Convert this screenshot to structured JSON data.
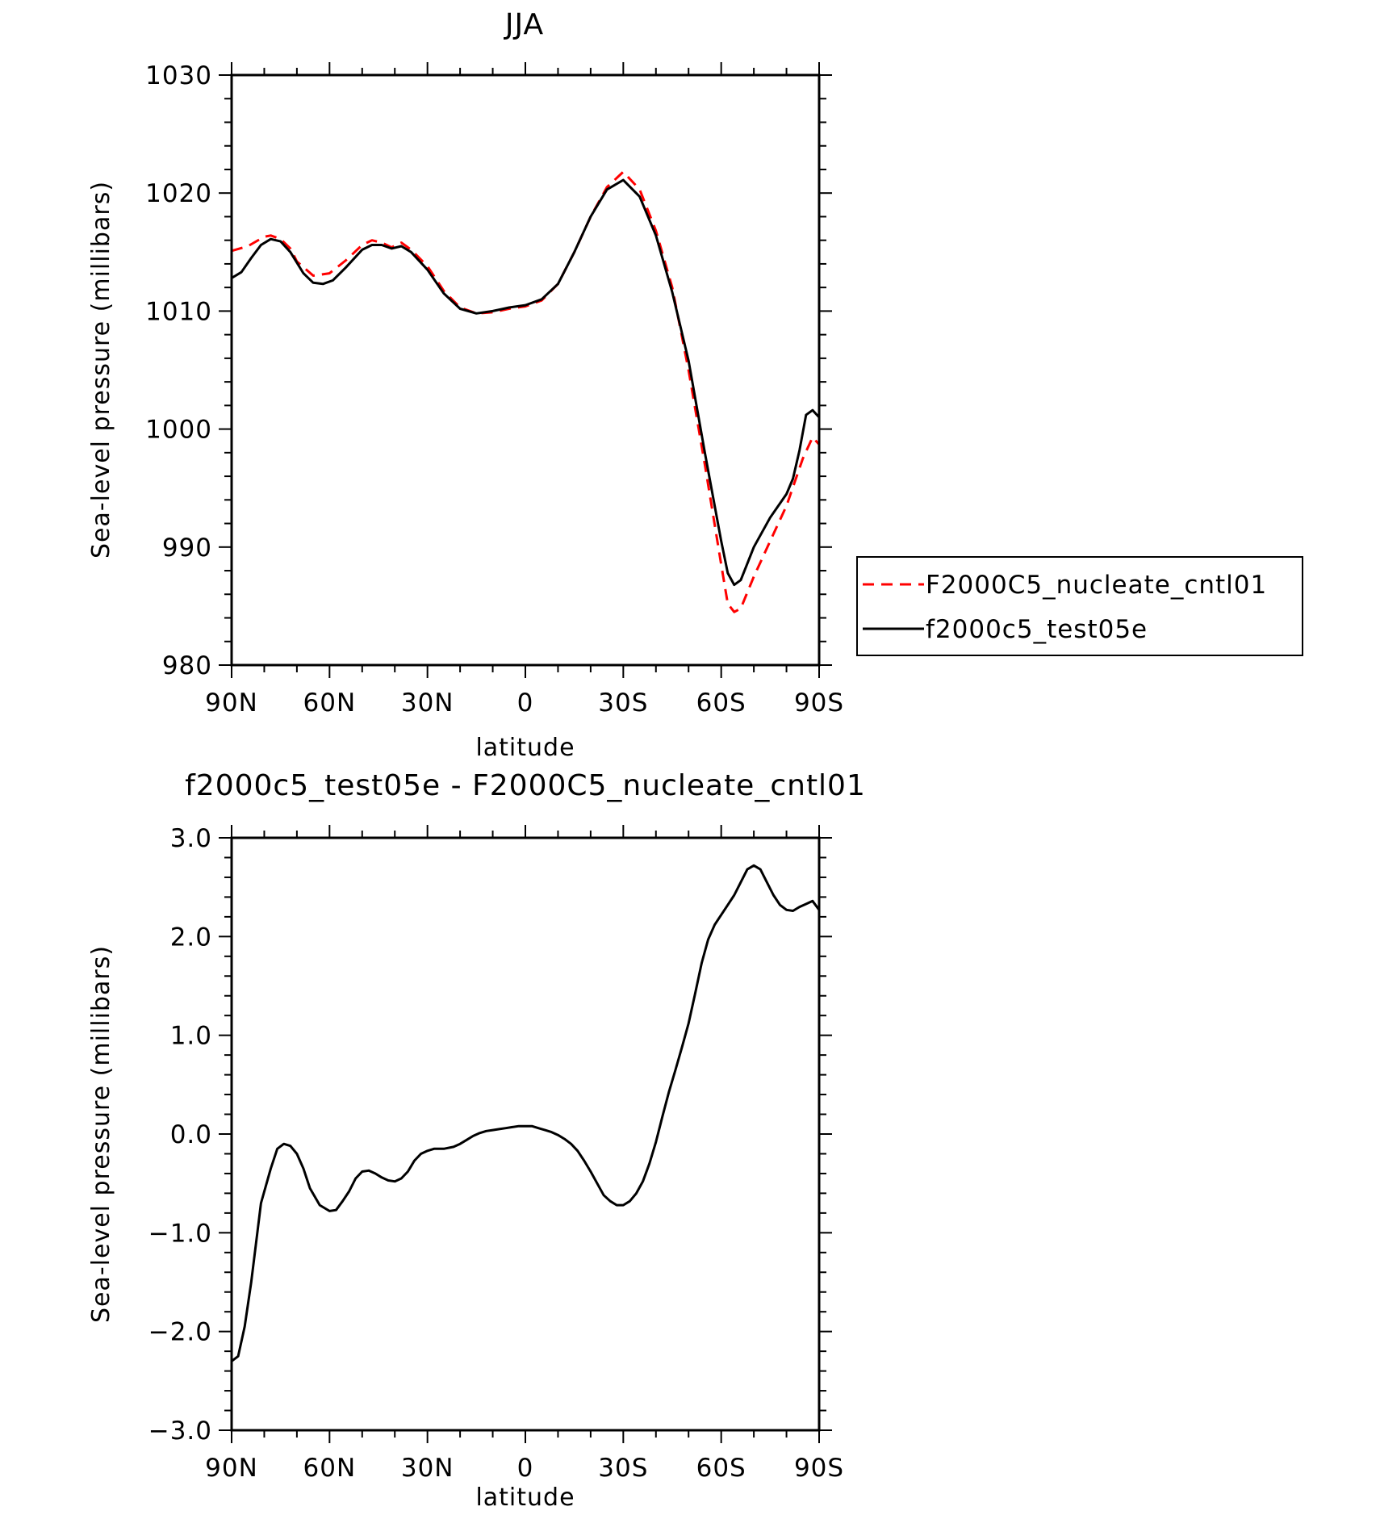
{
  "chart_data": [
    {
      "type": "line",
      "title": "JJA",
      "xlabel": "latitude",
      "ylabel": "Sea-level pressure (millibars)",
      "xlim": [
        90,
        -90
      ],
      "ylim": [
        980,
        1030
      ],
      "x_ticks": [
        90,
        60,
        30,
        0,
        -30,
        -60,
        -90
      ],
      "x_tick_labels": [
        "90N",
        "60N",
        "30N",
        "0",
        "30S",
        "60S",
        "90S"
      ],
      "y_ticks": [
        980,
        990,
        1000,
        1010,
        1020,
        1030
      ],
      "y_tick_labels": [
        "980",
        "990",
        "1000",
        "1010",
        "1020",
        "1030"
      ],
      "legend_position": "right",
      "series": [
        {
          "name": "F2000C5_nucleate_cntl01",
          "color": "#ff0000",
          "dash": "dashed",
          "x": [
            90,
            85,
            80,
            78,
            75,
            72,
            70,
            65,
            60,
            55,
            50,
            47,
            44,
            41,
            38,
            35,
            30,
            25,
            20,
            15,
            10,
            5,
            0,
            -5,
            -10,
            -15,
            -20,
            -25,
            -30,
            -35,
            -40,
            -45,
            -50,
            -55,
            -60,
            -62,
            -64,
            -66,
            -70,
            -75,
            -80,
            -85,
            -88,
            -90
          ],
          "y": [
            1015.1,
            1015.5,
            1016.3,
            1016.4,
            1016.1,
            1015.3,
            1014.2,
            1013.0,
            1013.2,
            1014.3,
            1015.6,
            1016.0,
            1015.8,
            1015.4,
            1015.8,
            1015.2,
            1013.8,
            1011.7,
            1010.3,
            1009.8,
            1009.9,
            1010.2,
            1010.4,
            1010.9,
            1012.3,
            1015.0,
            1018.0,
            1020.5,
            1021.8,
            1020.3,
            1016.8,
            1012.0,
            1005.0,
            997.0,
            988.5,
            985.2,
            984.5,
            984.8,
            987.5,
            990.5,
            993.5,
            997.5,
            999.3,
            998.7
          ]
        },
        {
          "name": "f2000c5_test05e",
          "color": "#000000",
          "dash": "solid",
          "x": [
            90,
            87,
            84,
            81,
            78,
            75,
            72,
            68,
            65,
            62,
            59,
            55,
            50,
            47,
            44,
            41,
            38,
            35,
            30,
            25,
            20,
            15,
            10,
            5,
            0,
            -5,
            -10,
            -15,
            -20,
            -25,
            -30,
            -35,
            -40,
            -45,
            -50,
            -55,
            -60,
            -62,
            -64,
            -66,
            -68,
            -70,
            -75,
            -80,
            -82,
            -84,
            -86,
            -88,
            -90
          ],
          "y": [
            1012.8,
            1013.3,
            1014.5,
            1015.6,
            1016.1,
            1015.9,
            1015.0,
            1013.2,
            1012.4,
            1012.3,
            1012.6,
            1013.7,
            1015.2,
            1015.6,
            1015.6,
            1015.3,
            1015.5,
            1015.0,
            1013.5,
            1011.5,
            1010.2,
            1009.8,
            1010.0,
            1010.3,
            1010.5,
            1011.0,
            1012.3,
            1015.0,
            1018.0,
            1020.3,
            1021.1,
            1019.7,
            1016.4,
            1011.6,
            1005.8,
            998.0,
            990.5,
            987.8,
            986.8,
            987.2,
            988.6,
            990.0,
            992.5,
            994.5,
            995.8,
            998.2,
            1001.2,
            1001.6,
            1001.0
          ]
        }
      ]
    },
    {
      "type": "line",
      "title": "f2000c5_test05e - F2000C5_nucleate_cntl01",
      "xlabel": "latitude",
      "ylabel": "Sea-level pressure (millibars)",
      "xlim": [
        90,
        -90
      ],
      "ylim": [
        -3.0,
        3.0
      ],
      "x_ticks": [
        90,
        60,
        30,
        0,
        -30,
        -60,
        -90
      ],
      "x_tick_labels": [
        "90N",
        "60N",
        "30N",
        "0",
        "30S",
        "60S",
        "90S"
      ],
      "y_ticks": [
        -3.0,
        -2.0,
        -1.0,
        0.0,
        1.0,
        2.0,
        3.0
      ],
      "y_tick_labels": [
        "−3.0",
        "−2.0",
        "−1.0",
        "0.0",
        "1.0",
        "2.0",
        "3.0"
      ],
      "series": [
        {
          "color": "#000000",
          "dash": "solid",
          "x": [
            90,
            88,
            86,
            84,
            81,
            78,
            76,
            74,
            72,
            70,
            68,
            66,
            63,
            60,
            58,
            56,
            54,
            52,
            50,
            48,
            46,
            44,
            42,
            40,
            38,
            36,
            34,
            32,
            30,
            28,
            25,
            22,
            20,
            18,
            16,
            14,
            12,
            10,
            8,
            6,
            4,
            2,
            0,
            -2,
            -4,
            -6,
            -8,
            -10,
            -12,
            -14,
            -16,
            -18,
            -20,
            -22,
            -24,
            -26,
            -28,
            -30,
            -32,
            -34,
            -36,
            -38,
            -40,
            -42,
            -44,
            -46,
            -48,
            -50,
            -52,
            -54,
            -56,
            -58,
            -60,
            -62,
            -64,
            -66,
            -68,
            -70,
            -72,
            -74,
            -76,
            -78,
            -80,
            -82,
            -84,
            -86,
            -88,
            -90
          ],
          "y": [
            -2.3,
            -2.25,
            -1.95,
            -1.5,
            -0.7,
            -0.35,
            -0.15,
            -0.1,
            -0.12,
            -0.2,
            -0.35,
            -0.55,
            -0.72,
            -0.78,
            -0.77,
            -0.68,
            -0.58,
            -0.45,
            -0.38,
            -0.37,
            -0.4,
            -0.44,
            -0.47,
            -0.48,
            -0.45,
            -0.38,
            -0.27,
            -0.2,
            -0.17,
            -0.15,
            -0.15,
            -0.13,
            -0.1,
            -0.06,
            -0.02,
            0.01,
            0.03,
            0.04,
            0.05,
            0.06,
            0.07,
            0.08,
            0.08,
            0.08,
            0.06,
            0.04,
            0.02,
            -0.01,
            -0.05,
            -0.1,
            -0.17,
            -0.27,
            -0.38,
            -0.5,
            -0.62,
            -0.68,
            -0.72,
            -0.72,
            -0.68,
            -0.6,
            -0.48,
            -0.3,
            -0.08,
            0.18,
            0.43,
            0.65,
            0.88,
            1.12,
            1.42,
            1.73,
            1.97,
            2.12,
            2.22,
            2.32,
            2.42,
            2.55,
            2.68,
            2.72,
            2.68,
            2.55,
            2.42,
            2.32,
            2.27,
            2.26,
            2.3,
            2.33,
            2.36,
            2.27
          ]
        }
      ]
    }
  ]
}
